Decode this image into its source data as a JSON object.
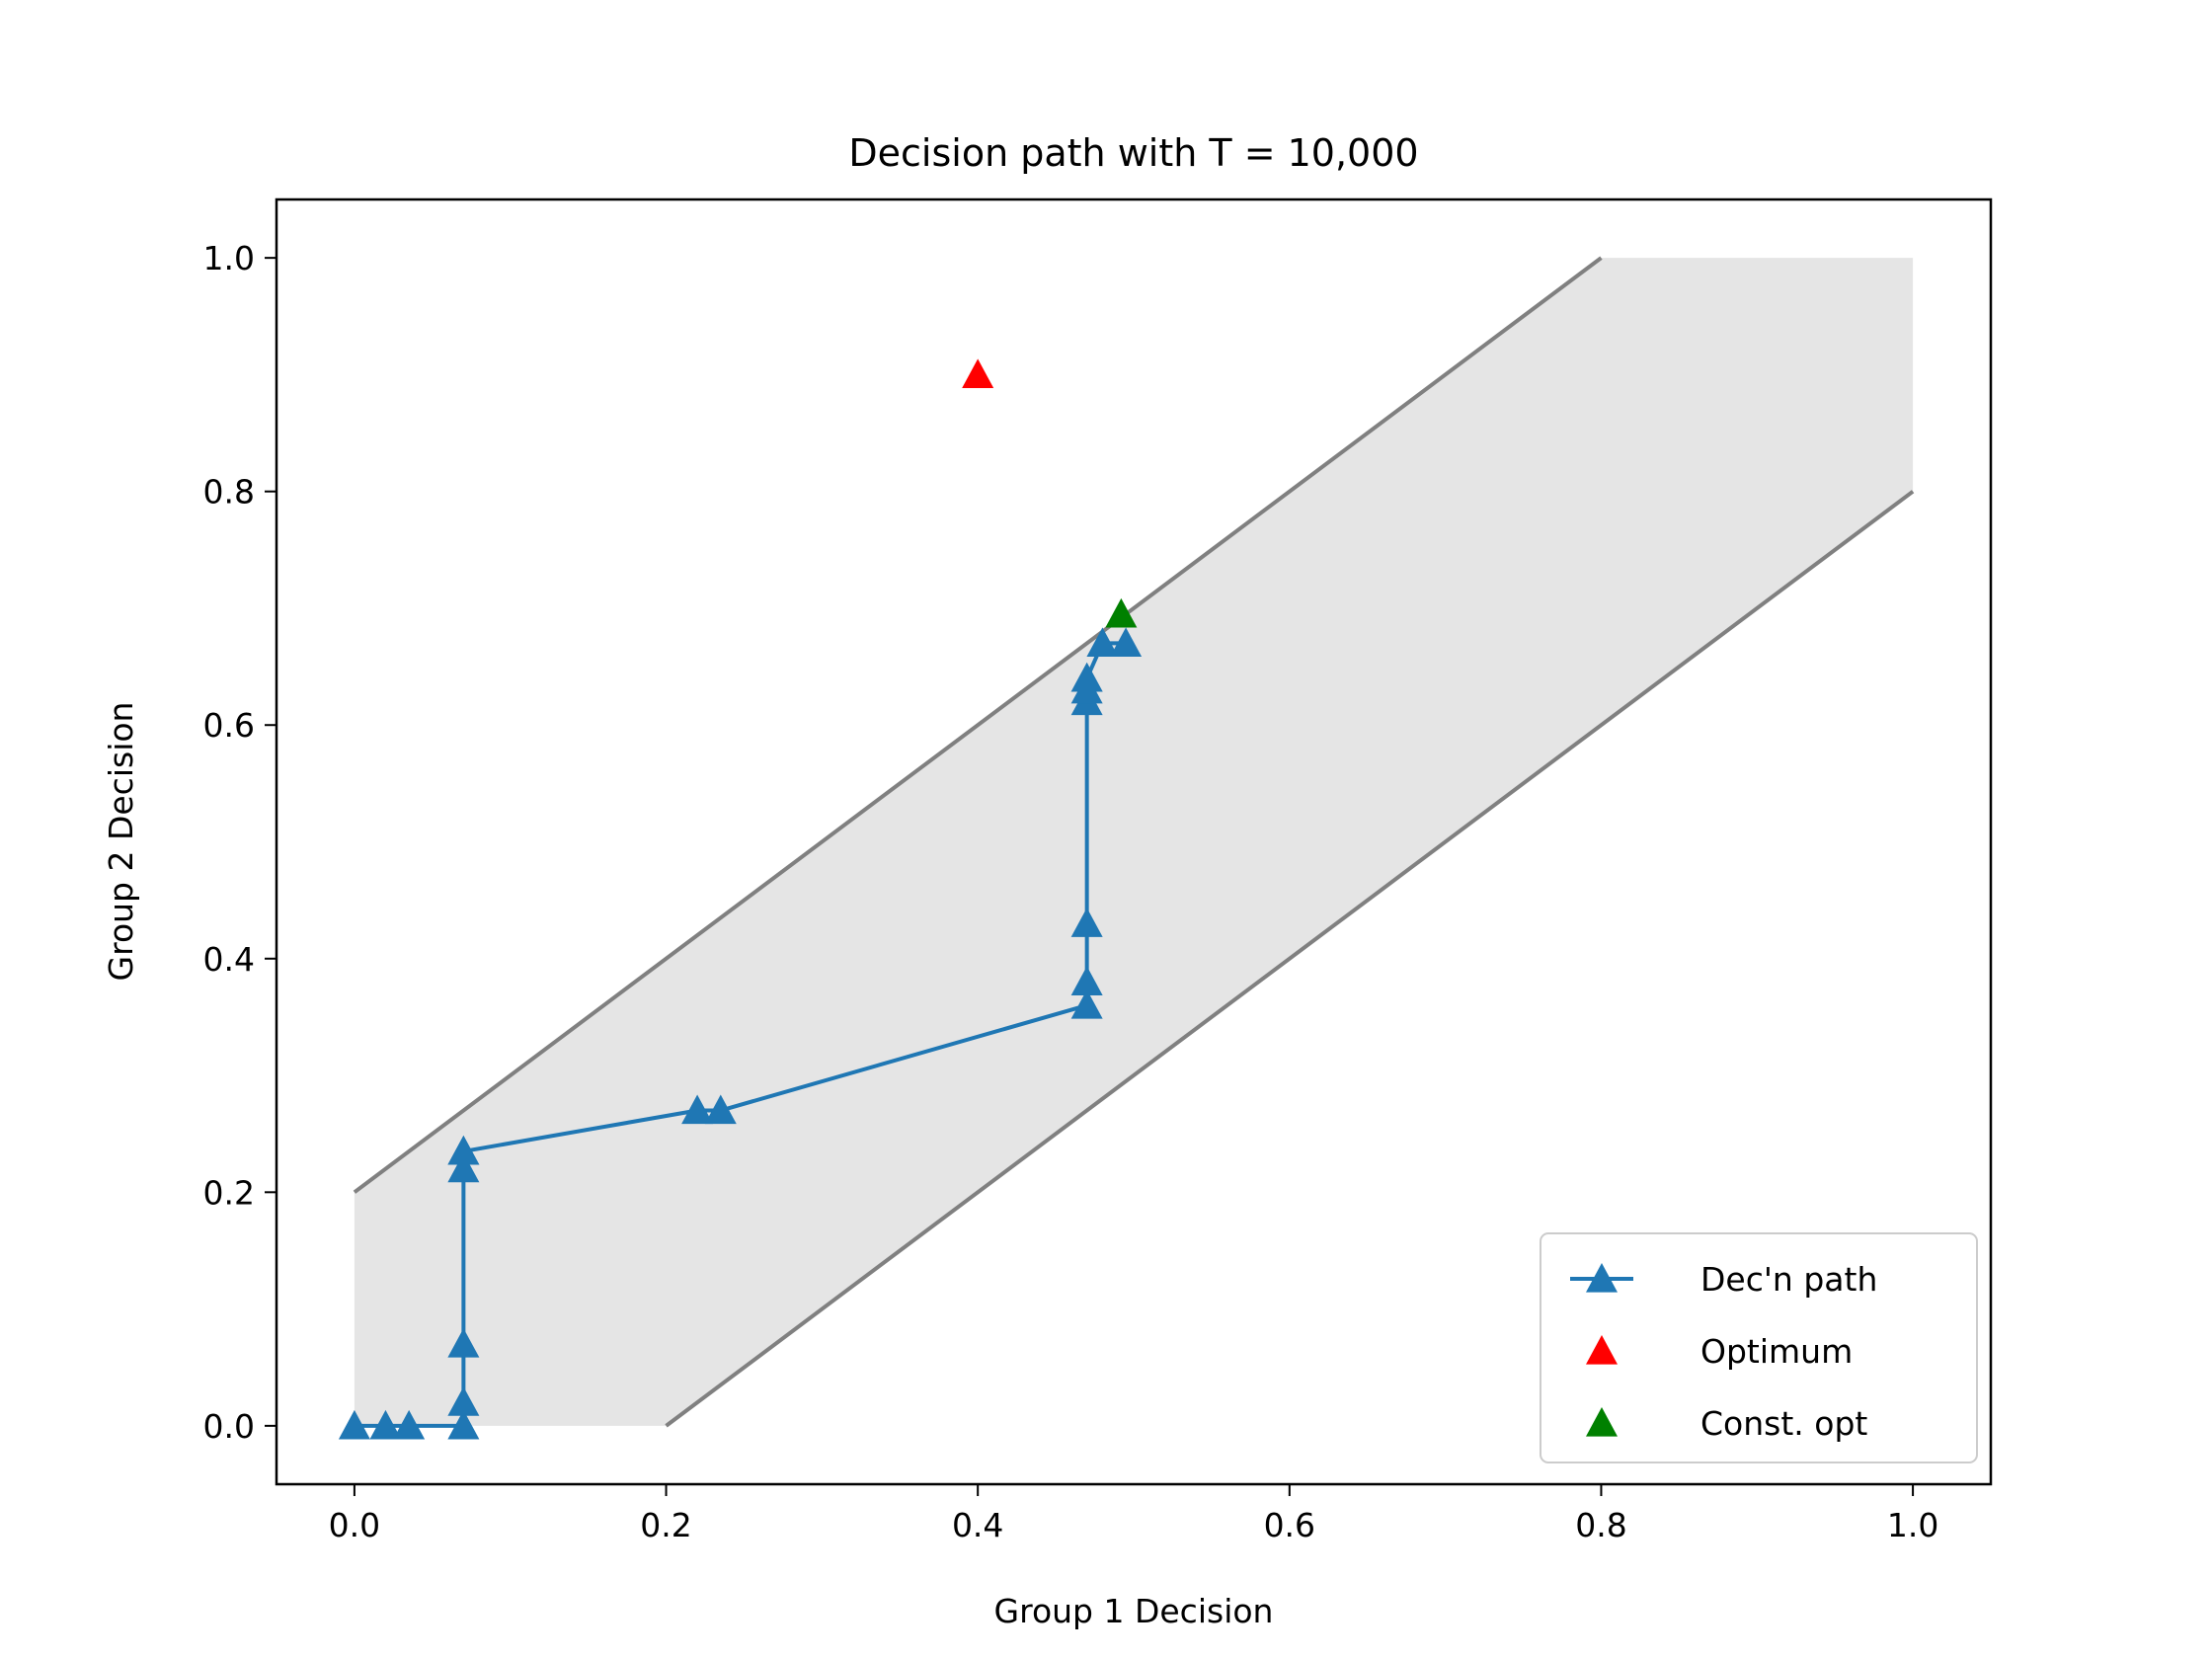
{
  "chart_data": {
    "type": "line",
    "title": "Decision path with T = 10,000",
    "xlabel": "Group 1 Decision",
    "ylabel": "Group 2 Decision",
    "xlim": [
      -0.05,
      1.05
    ],
    "ylim": [
      -0.05,
      1.05
    ],
    "xticks": [
      "0.0",
      "0.2",
      "0.4",
      "0.6",
      "0.8",
      "1.0"
    ],
    "yticks": [
      "0.0",
      "0.2",
      "0.4",
      "0.6",
      "0.8",
      "1.0"
    ],
    "grid": false,
    "legend_position": "lower-right",
    "feasible_region": {
      "fill_color": "#e5e5e5",
      "upper_boundary": {
        "x": [
          0,
          0.8
        ],
        "y": [
          0.2,
          1.0
        ]
      },
      "lower_boundary": {
        "x": [
          0.2,
          1.0
        ],
        "y": [
          0,
          0.8
        ]
      },
      "polygon": {
        "x": [
          0,
          0.2,
          1.0,
          1.0,
          0.8,
          0
        ],
        "y": [
          0,
          0,
          0.8,
          1.0,
          1.0,
          0.2
        ]
      },
      "boundary_color": "#808080"
    },
    "series": [
      {
        "name": "Dec'n path",
        "marker": "triangle",
        "line": true,
        "color": "#1f77b4",
        "x": [
          0.0,
          0.02,
          0.035,
          0.07,
          0.07,
          0.07,
          0.07,
          0.07,
          0.07,
          0.22,
          0.235,
          0.47,
          0.47,
          0.47,
          0.47,
          0.47,
          0.47,
          0.47,
          0.48,
          0.495
        ],
        "y": [
          0.0,
          0.0,
          0.0,
          0.0,
          0.02,
          0.07,
          0.22,
          0.235,
          0.235,
          0.27,
          0.27,
          0.36,
          0.38,
          0.43,
          0.62,
          0.63,
          0.64,
          0.64,
          0.67,
          0.67
        ]
      },
      {
        "name": "Optimum",
        "marker": "triangle",
        "line": false,
        "color": "#ff0000",
        "x": [
          0.4
        ],
        "y": [
          0.9
        ]
      },
      {
        "name": "Const. opt",
        "marker": "triangle",
        "line": false,
        "color": "#008000",
        "x": [
          0.492
        ],
        "y": [
          0.695
        ]
      }
    ]
  }
}
